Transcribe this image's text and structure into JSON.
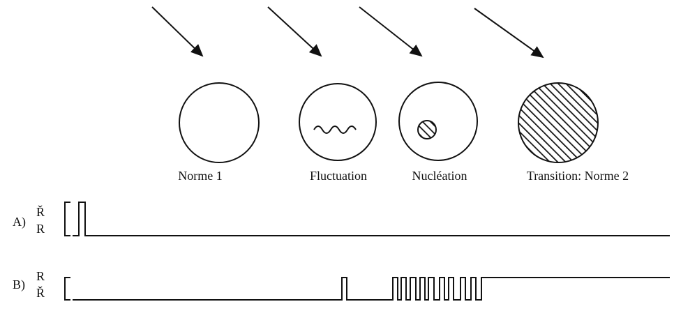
{
  "states": [
    {
      "label": "Norme 1"
    },
    {
      "label": "Fluctuation"
    },
    {
      "label": "Nucléation"
    },
    {
      "label": "Transition: Norme 2"
    }
  ],
  "signals": [
    {
      "letter": "A)",
      "upper": "Ř",
      "lower": "R"
    },
    {
      "letter": "B)",
      "upper": "R",
      "lower": "Ř"
    }
  ]
}
